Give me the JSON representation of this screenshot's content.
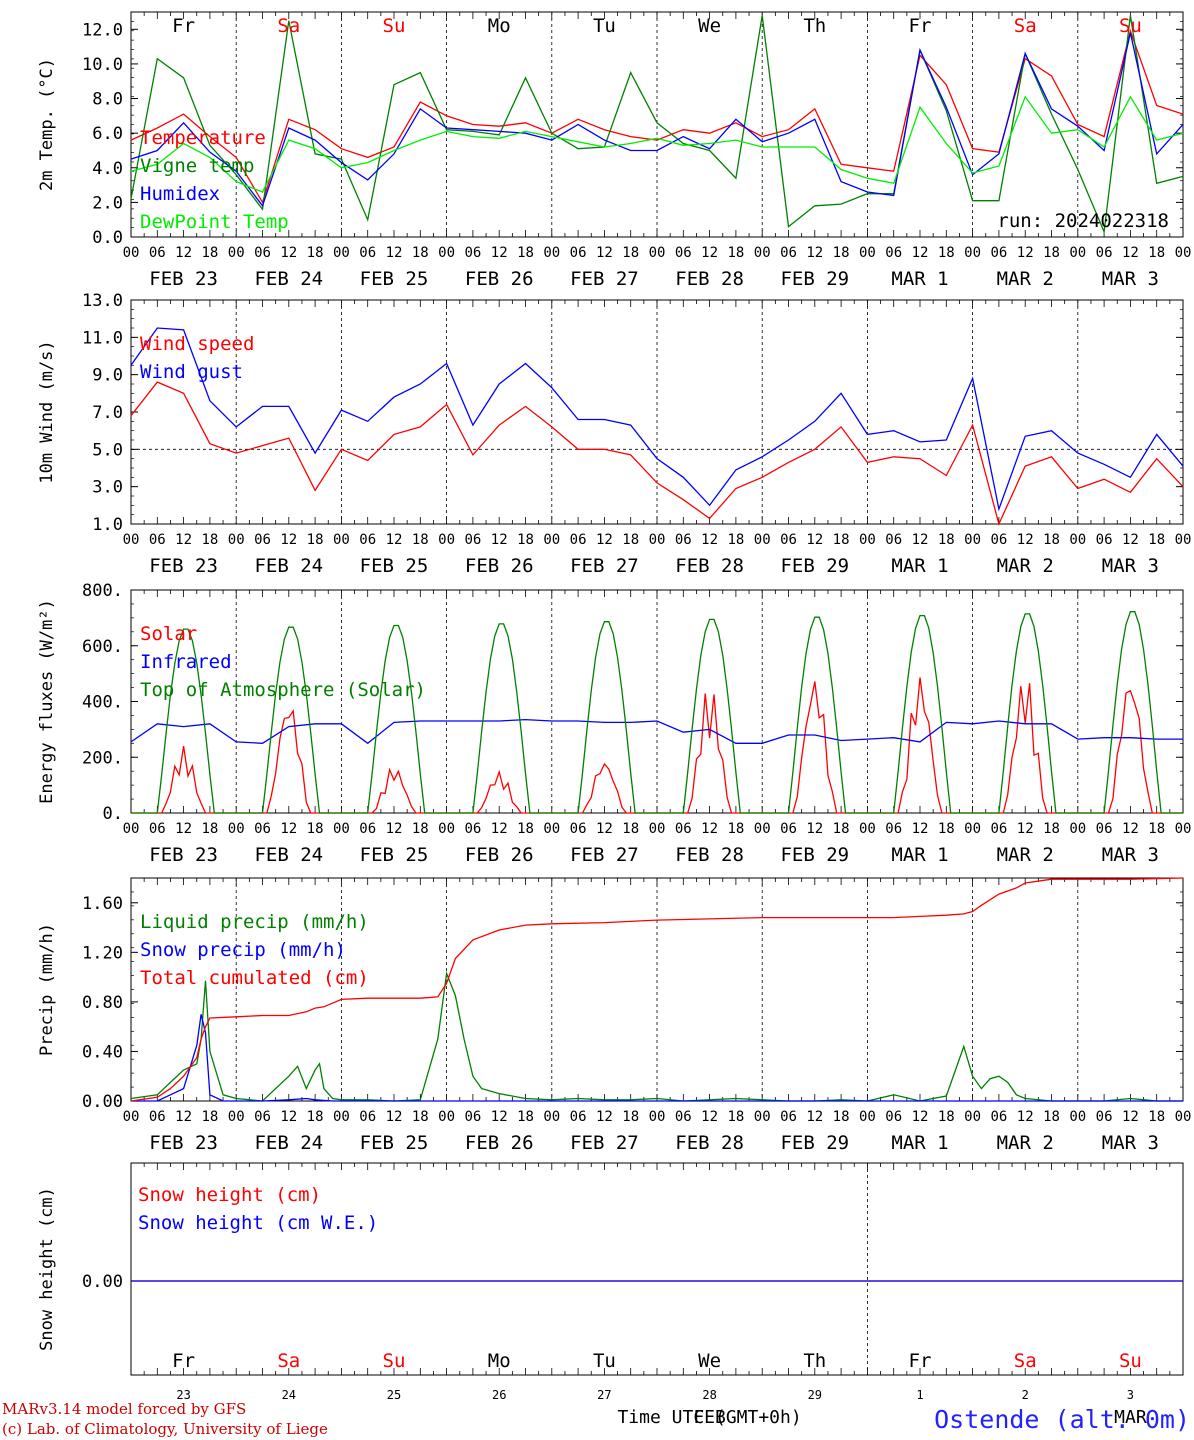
{
  "chart_data": [
    {
      "type": "line",
      "ylabel": "2m Temp. (°C)",
      "ylim": [
        0,
        13
      ],
      "yticks": [
        "0.0",
        "2.0",
        "4.0",
        "6.0",
        "8.0",
        "10.0",
        "12.0"
      ],
      "legend": [
        "Temperature",
        "Vigne temp",
        "Humidex",
        "DewPoint Temp"
      ],
      "annotation": "run: 2024022318",
      "day_labels": [
        "Fr",
        "Sa",
        "Su",
        "Mo",
        "Tu",
        "We",
        "Th",
        "Fr",
        "Sa",
        "Su"
      ],
      "x_hours": [
        0,
        6,
        12,
        18,
        24,
        30,
        36,
        42,
        48,
        54,
        60,
        66,
        72,
        78,
        84,
        90,
        96,
        102,
        108,
        114,
        120,
        126,
        132,
        138,
        144,
        150,
        156,
        162,
        168,
        174,
        180,
        186,
        192,
        198,
        204,
        210,
        216,
        222,
        228,
        234,
        240
      ],
      "series": [
        {
          "name": "Temperature",
          "color": "#ff0000",
          "values": [
            5.6,
            6.3,
            7.1,
            5.8,
            4.6,
            2.0,
            6.8,
            6.2,
            5.1,
            4.6,
            5.2,
            7.8,
            7.0,
            6.5,
            6.4,
            6.6,
            6.0,
            6.8,
            6.2,
            5.8,
            5.6,
            6.2,
            6.0,
            6.6,
            5.8,
            6.2,
            7.4,
            4.2,
            4.0,
            3.8,
            10.5,
            8.8,
            5.1,
            4.9,
            10.3,
            9.3,
            6.5,
            5.8,
            11.9,
            7.6,
            7.1
          ]
        },
        {
          "name": "Vigne temp",
          "color": "#008000",
          "values": [
            2.2,
            10.3,
            9.2,
            5.3,
            3.6,
            1.6,
            12.5,
            4.8,
            4.5,
            1.0,
            8.8,
            9.5,
            6.2,
            6.1,
            5.9,
            9.2,
            6.0,
            5.1,
            5.2,
            9.5,
            6.6,
            5.4,
            5.0,
            3.4,
            12.8,
            0.6,
            1.8,
            1.9,
            2.5,
            2.5,
            10.8,
            7.3,
            2.1,
            2.1,
            10.6,
            7.1,
            3.9,
            0.3,
            12.8,
            3.1,
            3.5
          ]
        },
        {
          "name": "Humidex",
          "color": "#0000ff",
          "values": [
            4.5,
            5.0,
            6.6,
            4.9,
            3.8,
            1.8,
            6.3,
            5.6,
            4.3,
            3.3,
            4.8,
            7.4,
            6.3,
            6.2,
            6.1,
            6.0,
            5.6,
            6.5,
            5.6,
            5.0,
            5.0,
            5.8,
            5.1,
            6.8,
            5.5,
            6.0,
            6.8,
            3.2,
            2.6,
            2.4,
            10.8,
            7.5,
            3.6,
            4.8,
            10.6,
            7.4,
            6.4,
            5.0,
            11.8,
            4.8,
            6.5
          ]
        },
        {
          "name": "DewPoint Temp",
          "color": "#00ee00",
          "values": [
            3.8,
            4.2,
            5.4,
            4.6,
            3.2,
            2.6,
            5.6,
            5.1,
            4.0,
            4.3,
            5.0,
            5.6,
            6.1,
            5.8,
            5.7,
            6.1,
            5.8,
            5.5,
            5.2,
            5.4,
            5.7,
            5.3,
            5.4,
            5.6,
            5.2,
            5.2,
            5.2,
            3.9,
            3.4,
            3.1,
            7.5,
            5.4,
            3.7,
            4.1,
            8.1,
            6.0,
            6.2,
            5.2,
            8.1,
            5.6,
            6.0
          ]
        }
      ]
    },
    {
      "type": "line",
      "ylabel": "10m Wind (m/s)",
      "ylim": [
        1,
        13
      ],
      "yticks": [
        "1.0",
        "3.0",
        "5.0",
        "7.0",
        "9.0",
        "11.0",
        "13.0"
      ],
      "reference_line": 5,
      "legend": [
        "Wind speed",
        "Wind gust"
      ],
      "x_hours": [
        0,
        6,
        12,
        18,
        24,
        30,
        36,
        42,
        48,
        54,
        60,
        66,
        72,
        78,
        84,
        90,
        96,
        102,
        108,
        114,
        120,
        126,
        132,
        138,
        144,
        150,
        156,
        162,
        168,
        174,
        180,
        186,
        192,
        198,
        204,
        210,
        216,
        222,
        228,
        234,
        240
      ],
      "series": [
        {
          "name": "Wind speed",
          "color": "#ff0000",
          "values": [
            6.8,
            8.6,
            8.0,
            5.3,
            4.8,
            5.2,
            5.6,
            2.8,
            5.0,
            4.4,
            5.8,
            6.2,
            7.4,
            4.7,
            6.3,
            7.3,
            6.2,
            5.0,
            5.0,
            4.7,
            3.2,
            2.3,
            1.3,
            2.9,
            3.5,
            4.3,
            5.0,
            6.2,
            4.3,
            4.6,
            4.5,
            3.6,
            6.3,
            1.0,
            4.1,
            4.6,
            2.9,
            3.4,
            2.7,
            4.5,
            3.0
          ]
        },
        {
          "name": "Wind gust",
          "color": "#0000ff",
          "values": [
            9.5,
            11.5,
            11.4,
            7.6,
            6.2,
            7.3,
            7.3,
            4.8,
            7.1,
            6.5,
            7.8,
            8.5,
            9.6,
            6.3,
            8.5,
            9.6,
            8.3,
            6.6,
            6.6,
            6.3,
            4.5,
            3.5,
            2.0,
            3.9,
            4.6,
            5.5,
            6.5,
            8.0,
            5.8,
            6.0,
            5.4,
            5.5,
            8.8,
            1.8,
            5.7,
            6.0,
            4.8,
            4.2,
            3.5,
            5.8,
            4.1
          ]
        }
      ]
    },
    {
      "type": "line",
      "ylabel": "Energy fluxes (W/m²)",
      "ylim": [
        0,
        800
      ],
      "yticks": [
        "0.",
        "200.",
        "400.",
        "600.",
        "800."
      ],
      "legend": [
        "Solar",
        "Infrared",
        "Top of Atmosphere (Solar)"
      ],
      "series": [
        {
          "name": "Solar",
          "color": "#ff0000",
          "daily_peaks": [
            240,
            420,
            170,
            150,
            195,
            465,
            505,
            505,
            505,
            510
          ]
        },
        {
          "name": "Infrared",
          "color": "#0000ff",
          "x_hours": [
            0,
            6,
            12,
            18,
            24,
            30,
            36,
            42,
            48,
            54,
            60,
            66,
            72,
            78,
            84,
            90,
            96,
            102,
            108,
            114,
            120,
            126,
            132,
            138,
            144,
            150,
            156,
            162,
            168,
            174,
            180,
            186,
            192,
            198,
            204,
            210,
            216,
            222,
            228,
            234,
            240
          ],
          "values": [
            255,
            320,
            310,
            320,
            255,
            250,
            310,
            320,
            320,
            250,
            325,
            330,
            330,
            330,
            330,
            335,
            330,
            330,
            325,
            325,
            330,
            290,
            300,
            250,
            250,
            280,
            280,
            260,
            265,
            270,
            255,
            325,
            320,
            330,
            320,
            320,
            265,
            270,
            270,
            265,
            265
          ]
        },
        {
          "name": "Top of Atmosphere (Solar)",
          "color": "#008000",
          "daily_peaks": [
            665,
            672,
            678,
            684,
            692,
            700,
            708,
            714,
            720,
            728
          ]
        }
      ]
    },
    {
      "type": "line",
      "ylabel": "Precip (mm/h)",
      "ylim": [
        0,
        1.8
      ],
      "yticks": [
        "0.00",
        "0.40",
        "0.80",
        "1.20",
        "1.60"
      ],
      "legend": [
        "Liquid precip (mm/h)",
        "Snow precip (mm/h)",
        "Total cumulated (cm)"
      ],
      "series": [
        {
          "name": "Liquid precip (mm/h)",
          "color": "#008000",
          "x_hours": [
            0,
            6,
            9,
            12,
            15,
            16,
            17,
            18,
            21,
            24,
            30,
            36,
            38,
            40,
            42,
            43,
            44,
            46,
            48,
            54,
            60,
            66,
            70,
            72,
            74,
            76,
            78,
            80,
            84,
            90,
            96,
            102,
            108,
            114,
            120,
            126,
            132,
            138,
            144,
            150,
            156,
            162,
            168,
            174,
            180,
            186,
            190,
            192,
            194,
            196,
            198,
            200,
            202,
            204,
            210,
            216,
            222,
            228,
            234,
            240
          ],
          "values": [
            0.02,
            0.05,
            0.15,
            0.25,
            0.3,
            0.5,
            0.97,
            0.4,
            0.05,
            0.02,
            0.0,
            0.2,
            0.28,
            0.1,
            0.25,
            0.3,
            0.1,
            0.02,
            0.01,
            0.01,
            0.0,
            0.01,
            0.5,
            1.03,
            0.85,
            0.5,
            0.2,
            0.1,
            0.06,
            0.02,
            0.01,
            0.02,
            0.01,
            0.01,
            0.02,
            0.0,
            0.01,
            0.02,
            0.01,
            0.0,
            0.0,
            0.01,
            0.0,
            0.05,
            0.0,
            0.04,
            0.44,
            0.2,
            0.1,
            0.18,
            0.2,
            0.15,
            0.05,
            0.02,
            0.0,
            0.0,
            0.0,
            0.02,
            0.0,
            0.0
          ]
        },
        {
          "name": "Snow precip (mm/h)",
          "color": "#0000ff",
          "x_hours": [
            0,
            6,
            9,
            12,
            15,
            16,
            17,
            18,
            21,
            24,
            30,
            36,
            40,
            42,
            46,
            48,
            60,
            72,
            96,
            120,
            144,
            168,
            192,
            216,
            240
          ],
          "values": [
            0.0,
            0.0,
            0.05,
            0.1,
            0.45,
            0.7,
            0.55,
            0.05,
            0.0,
            0.0,
            0.0,
            0.01,
            0.02,
            0.01,
            0.0,
            0.0,
            0.0,
            0.0,
            0.0,
            0.0,
            0.0,
            0.0,
            0.0,
            0.0,
            0.0
          ]
        },
        {
          "name": "Total cumulated (cm)",
          "color": "#ff0000",
          "x_hours": [
            0,
            6,
            9,
            12,
            15,
            16,
            17,
            18,
            24,
            30,
            36,
            40,
            42,
            44,
            48,
            54,
            60,
            66,
            70,
            72,
            74,
            78,
            84,
            90,
            96,
            108,
            120,
            132,
            144,
            156,
            168,
            174,
            180,
            186,
            190,
            192,
            194,
            198,
            202,
            204,
            210,
            216,
            228,
            240
          ],
          "values": [
            0.0,
            0.03,
            0.1,
            0.2,
            0.35,
            0.5,
            0.6,
            0.67,
            0.68,
            0.69,
            0.69,
            0.72,
            0.75,
            0.76,
            0.82,
            0.83,
            0.83,
            0.83,
            0.84,
            0.95,
            1.15,
            1.3,
            1.38,
            1.42,
            1.43,
            1.44,
            1.46,
            1.47,
            1.48,
            1.48,
            1.48,
            1.48,
            1.49,
            1.5,
            1.51,
            1.53,
            1.58,
            1.67,
            1.72,
            1.76,
            1.79,
            1.79,
            1.79,
            1.8
          ]
        }
      ]
    },
    {
      "type": "line",
      "ylabel": "Snow height (cm)",
      "yticks": [
        "0.00"
      ],
      "legend": [
        "Snow height (cm)",
        "Snow height (cm W.E.)"
      ],
      "series": [
        {
          "name": "Snow height (cm)",
          "color": "#ff0000",
          "values": [
            0,
            0
          ]
        },
        {
          "name": "Snow height (cm W.E.)",
          "color": "#0000ff",
          "values": [
            0,
            0
          ]
        }
      ],
      "day_labels": [
        "Fr",
        "Sa",
        "Su",
        "Mo",
        "Tu",
        "We",
        "Th",
        "Fr",
        "Sa",
        "Su"
      ],
      "day_numbers": [
        "23",
        "24",
        "25",
        "26",
        "27",
        "28",
        "29",
        "1",
        "2",
        "3"
      ],
      "xlabel": "Time UTC (GMT+0h)",
      "month_overlays": [
        "FEB",
        "MAR"
      ]
    }
  ],
  "x_axis": {
    "hour_ticks": [
      "00",
      "06",
      "12",
      "18"
    ],
    "dates": [
      "FEB 23",
      "FEB 24",
      "FEB 25",
      "FEB 26",
      "FEB 27",
      "FEB 28",
      "FEB 29",
      "MAR  1",
      "MAR  2",
      "MAR  3"
    ]
  },
  "colors": {
    "weekday": "#000000",
    "weekend": "#ff0000",
    "red": "#ff0000",
    "green": "#008000",
    "blue": "#0000ff",
    "lightgreen": "#00ee00"
  },
  "footer": {
    "credit_1": "MARv3.14 model forced by GFS",
    "credit_2": "(c) Lab. of Climatology, University of Liege",
    "station": "Ostende (alt. 0m)"
  }
}
